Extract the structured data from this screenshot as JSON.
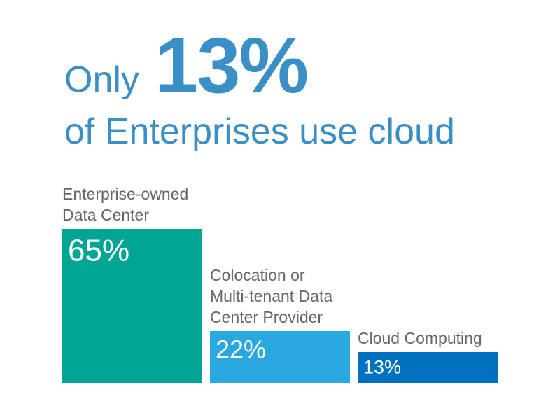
{
  "headline": {
    "prefix": "Only",
    "big_value": "13%",
    "line2": "of Enterprises use cloud"
  },
  "colors": {
    "headline": "#3a8fc7",
    "label_text": "#666666"
  },
  "chart_data": {
    "type": "bar",
    "categories": [
      [
        "Enterprise-owned",
        "Data Center"
      ],
      [
        "Colocation or",
        "Multi-tenant Data",
        "Center Provider"
      ],
      [
        "Cloud Computing"
      ]
    ],
    "values": [
      65,
      22,
      13
    ],
    "value_labels": [
      "65%",
      "22%",
      "13%"
    ],
    "colors": [
      "#00a693",
      "#29a8e0",
      "#0070c0"
    ],
    "ylim": [
      0,
      65
    ],
    "grid": false,
    "legend": "none"
  }
}
